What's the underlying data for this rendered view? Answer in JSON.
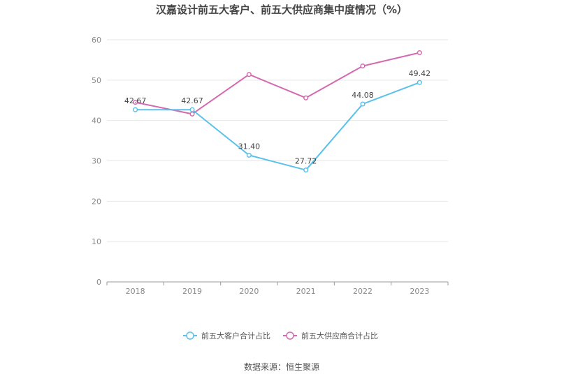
{
  "chart_data": {
    "type": "line",
    "title": "汉嘉设计前五大客户、前五大供应商集中度情况（%）",
    "categories": [
      "2018",
      "2019",
      "2020",
      "2021",
      "2022",
      "2023"
    ],
    "ylim": [
      0,
      60
    ],
    "yticks": [
      0,
      10,
      20,
      30,
      40,
      50,
      60
    ],
    "grid": true,
    "legend_position": "bottom",
    "series": [
      {
        "name": "前五大客户合计占比",
        "color": "#5bc0eb",
        "values": [
          42.67,
          42.67,
          31.4,
          27.72,
          44.08,
          49.42
        ],
        "labels": [
          "42.67",
          "42.67",
          "31.40",
          "27.72",
          "44.08",
          "49.42"
        ]
      },
      {
        "name": "前五大供应商合计占比",
        "color": "#d36ab0",
        "values": [
          44.5,
          41.6,
          51.4,
          45.6,
          53.5,
          56.8
        ]
      }
    ]
  },
  "source": "数据来源：恒生聚源"
}
